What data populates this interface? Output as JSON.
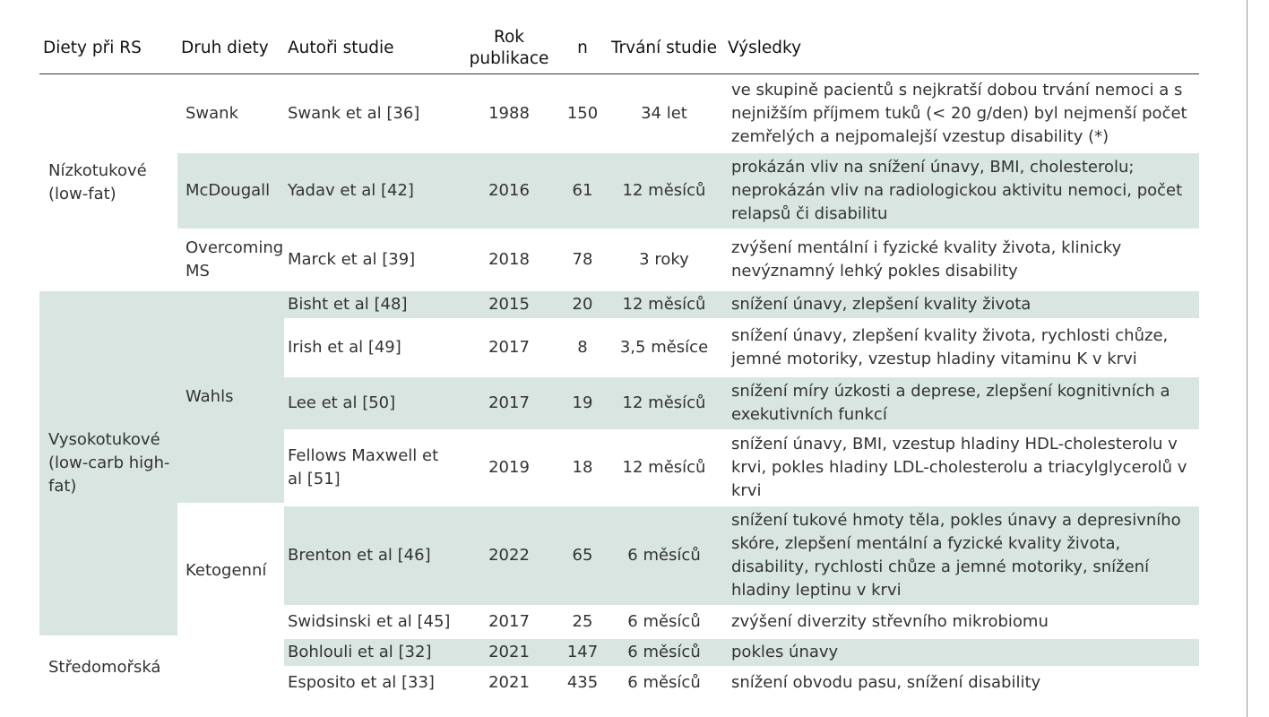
{
  "headers": {
    "category": "Diety při RS",
    "diet": "Druh diety",
    "authors": "Autoři studie",
    "year": "Rok publikace",
    "n": "n",
    "duration": "Trvání studie",
    "results": "Výsledky"
  },
  "groups": [
    {
      "category": "Nízkotukové (low-fat)",
      "diets": [
        {
          "diet": "Swank",
          "studies": [
            {
              "authors": "Swank et al [36]",
              "year": "1988",
              "n": "150",
              "duration": "34 let",
              "results": "ve skupině pacientů s nejkratší dobou trvání nemoci a s nejnižším příjmem tuků (< 20 g/den) byl nejmenší počet zemřelých a nejpomalejší vzestup disability (*)"
            }
          ]
        },
        {
          "diet": "McDougall",
          "studies": [
            {
              "authors": "Yadav et al [42]",
              "year": "2016",
              "n": "61",
              "duration": "12 měsíců",
              "results": "prokázán vliv na snížení únavy, BMI, cholesterolu; neprokázán vliv na radiologickou aktivitu nemoci, počet relapsů či disabilitu"
            }
          ]
        },
        {
          "diet": "Overcoming MS",
          "studies": [
            {
              "authors": "Marck et al [39]",
              "year": "2018",
              "n": "78",
              "duration": "3 roky",
              "results": "zvýšení mentální i fyzické kvality života, klinicky nevýznamný lehký pokles disability"
            }
          ]
        }
      ]
    },
    {
      "category": "Vysokotukové (low-carb high-fat)",
      "diets": [
        {
          "diet": "Wahls",
          "studies": [
            {
              "authors": "Bisht et al [48]",
              "year": "2015",
              "n": "20",
              "duration": "12 měsíců",
              "results": "snížení únavy, zlepšení kvality života"
            },
            {
              "authors": "Irish et al [49]",
              "year": "2017",
              "n": "8",
              "duration": "3,5 měsíce",
              "results": "snížení únavy, zlepšení kvality života, rychlosti chůze, jemné motoriky, vzestup hladiny vitaminu K v krvi"
            },
            {
              "authors": "Lee et al [50]",
              "year": "2017",
              "n": "19",
              "duration": "12 měsíců",
              "results": "snížení míry úzkosti a deprese, zlepšení kognitivních a exekutivních funkcí"
            },
            {
              "authors": "Fellows Maxwell et al [51]",
              "year": "2019",
              "n": "18",
              "duration": "12 měsíců",
              "results": "snížení únavy, BMI, vzestup hladiny HDL-cholesterolu v krvi, pokles hladiny LDL-cholesterolu a triacylglycerolů v krvi"
            }
          ]
        },
        {
          "diet": "Ketogenní",
          "studies": [
            {
              "authors": "Brenton et al [46]",
              "year": "2022",
              "n": "65",
              "duration": "6 měsíců",
              "results": "snížení tukové hmoty těla, pokles únavy a depresivního skóre, zlepšení mentální a fyzické kvality života, disability, rychlosti chůze a jemné motoriky, snížení hladiny leptinu v krvi"
            },
            {
              "authors": "Swidsinski  et al [45]",
              "year": "2017",
              "n": "25",
              "duration": "6 měsíců",
              "results": "zvýšení diverzity střevního mikrobiomu"
            }
          ]
        }
      ]
    },
    {
      "category": "Středomořská",
      "diets": [
        {
          "diet": "",
          "studies": [
            {
              "authors": "Bohlouli et al [32]",
              "year": "2021",
              "n": "147",
              "duration": "6 měsíců",
              "results": "pokles únavy"
            },
            {
              "authors": "Esposito et al [33]",
              "year": "2021",
              "n": "435",
              "duration": "6 měsíců",
              "results": "snížení obvodu pasu, snížení disability"
            }
          ]
        }
      ]
    }
  ]
}
